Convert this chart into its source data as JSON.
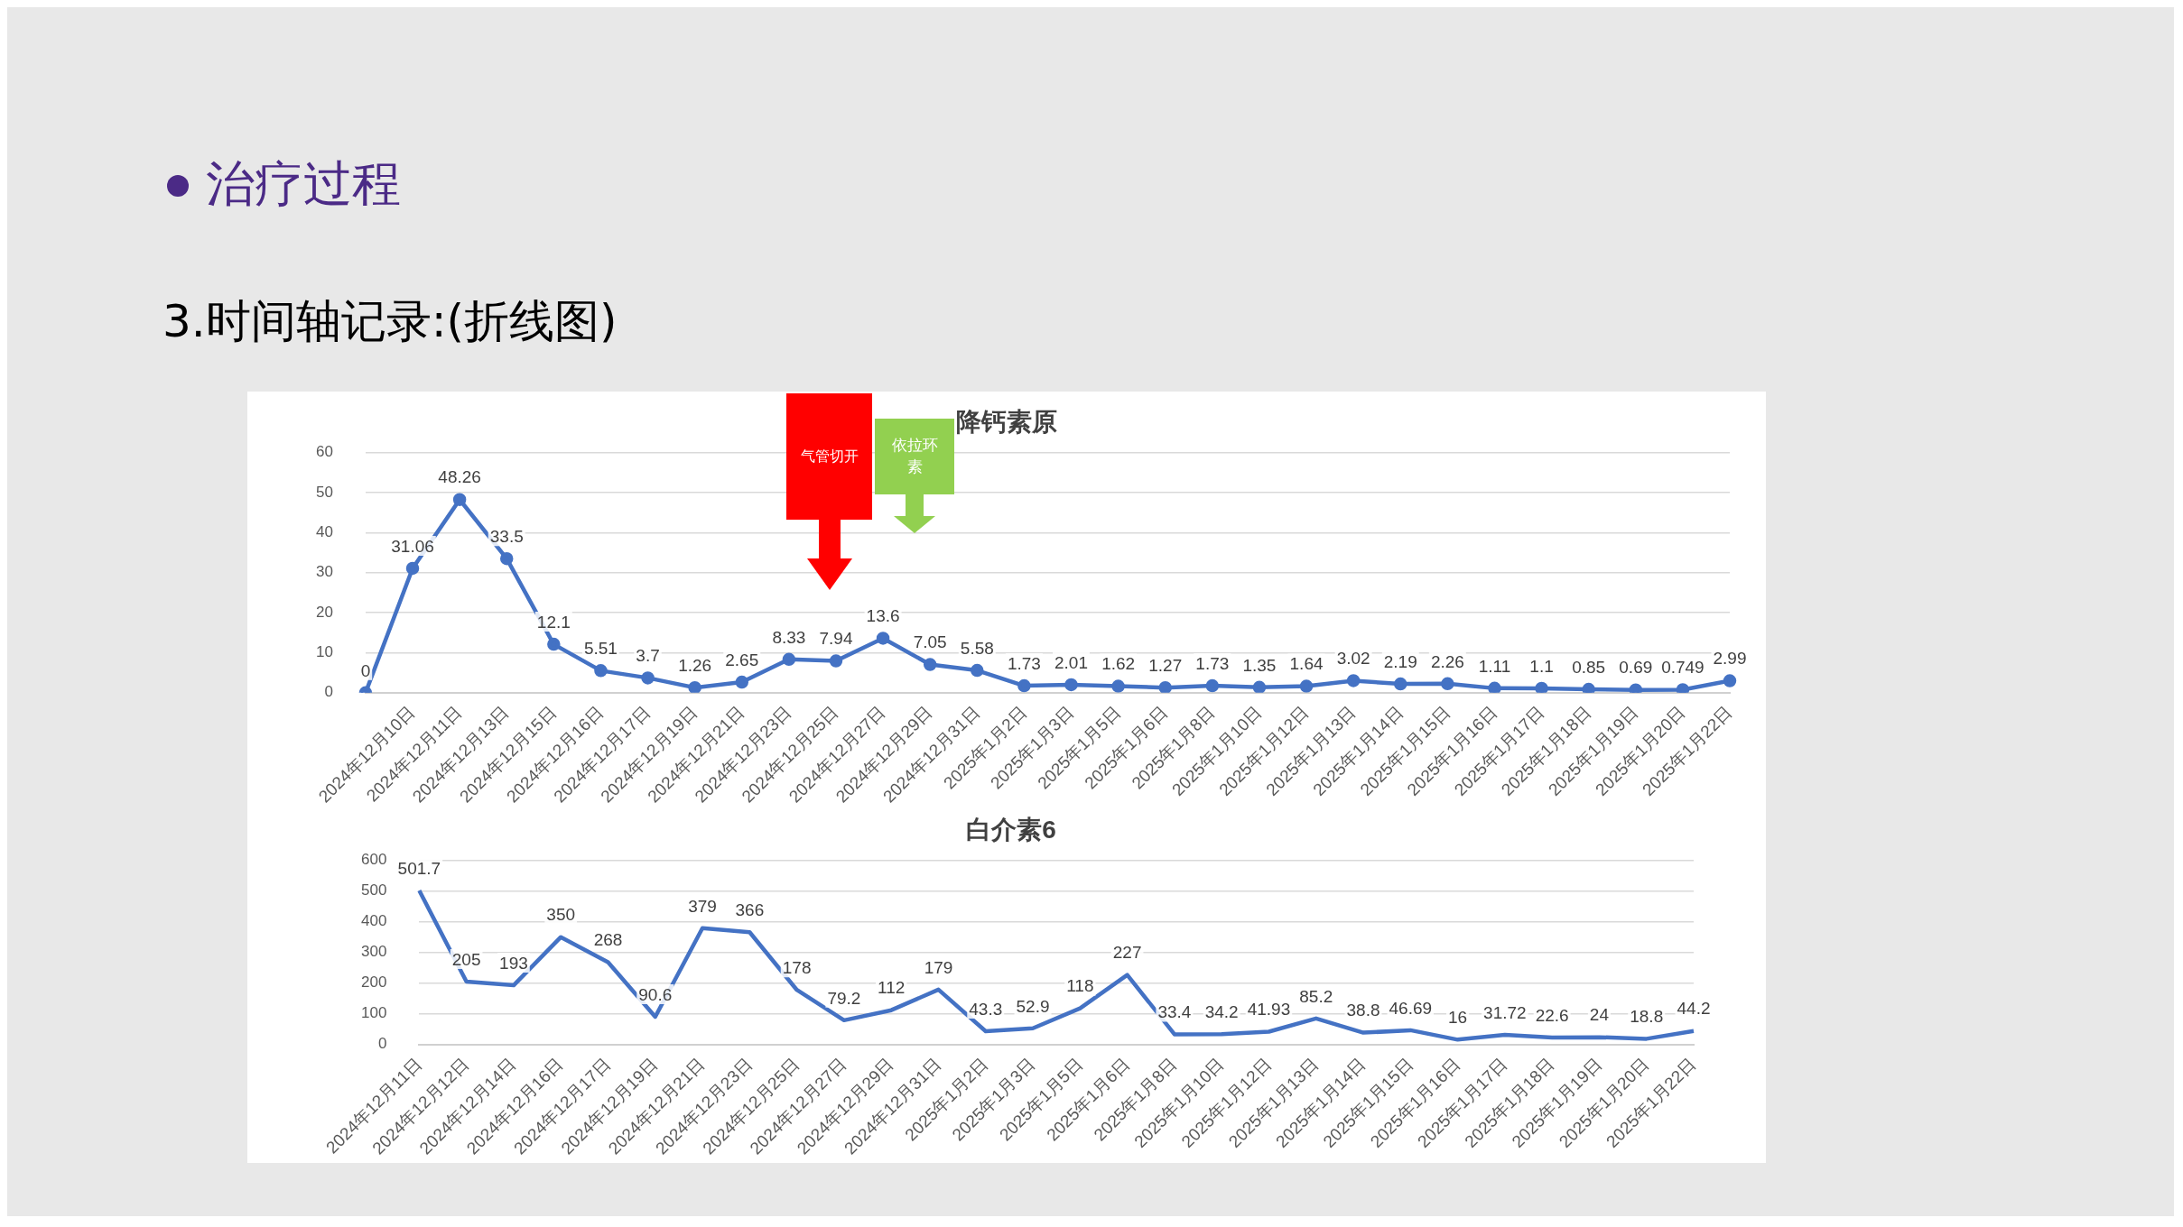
{
  "chart_data": [
    {
      "type": "line",
      "title": "降钙素原",
      "annotations": [
        "治疗过程",
        "3.时间轴记录:(折线图)",
        "气管切开",
        "依拉环素"
      ],
      "categories": [
        null,
        "2024年12月10日",
        "2024年12月11日",
        "2024年12月13日",
        "2024年12月15日",
        "2024年12月16日",
        "2024年12月17日",
        "2024年12月19日",
        "2024年12月21日",
        "2024年12月23日",
        "2024年12月25日",
        "2024年12月27日",
        "2024年12月29日",
        "2024年12月31日",
        "2025年1月2日",
        "2025年1月3日",
        "2025年1月5日",
        "2025年1月6日",
        "2025年1月8日",
        "2025年1月10日",
        "2025年1月12日",
        "2025年1月13日",
        "2025年1月14日",
        "2025年1月15日",
        "2025年1月16日",
        "2025年1月17日",
        "2025年1月18日",
        "2025年1月19日",
        "2025年1月20日",
        "2025年1月22日"
      ],
      "series": [
        {
          "color": "#4472c4",
          "values": [
            0,
            31.06,
            48.26,
            33.5,
            12.1,
            5.51,
            3.7,
            1.26,
            2.65,
            8.33,
            7.94,
            13.6,
            7.05,
            5.58,
            1.73,
            2.01,
            1.62,
            1.27,
            1.73,
            1.35,
            1.64,
            3.02,
            2.19,
            2.26,
            1.11,
            1.1,
            0.85,
            0.69,
            0.749,
            2.99
          ]
        }
      ],
      "ylim": [
        0,
        60
      ],
      "yticks": [
        0,
        10,
        20,
        30,
        40,
        50,
        60
      ],
      "grid": "y",
      "marker": "circle",
      "data_labels": true,
      "legend": false
    },
    {
      "type": "line",
      "title": "白介素6",
      "categories": [
        "2024年12月11日",
        "2024年12月12日",
        "2024年12月14日",
        "2024年12月16日",
        "2024年12月17日",
        "2024年12月19日",
        "2024年12月21日",
        "2024年12月23日",
        "2024年12月25日",
        "2024年12月27日",
        "2024年12月29日",
        "2024年12月31日",
        "2025年1月2日",
        "2025年1月3日",
        "2025年1月5日",
        "2025年1月6日",
        "2025年1月8日",
        "2025年1月10日",
        "2025年1月12日",
        "2025年1月13日",
        "2025年1月14日",
        "2025年1月15日",
        "2025年1月16日",
        "2025年1月17日",
        "2025年1月18日",
        "2025年1月19日",
        "2025年1月20日",
        "2025年1月22日"
      ],
      "series": [
        {
          "color": "#4472c4",
          "values": [
            501.7,
            205,
            193,
            350,
            268,
            90.6,
            379,
            366,
            178,
            79.2,
            112,
            179,
            43.3,
            52.9,
            118,
            227,
            33.4,
            34.2,
            41.93,
            85.2,
            38.8,
            46.69,
            16,
            31.72,
            22.6,
            24,
            18.8,
            44.2
          ]
        }
      ],
      "ylim": [
        0,
        600
      ],
      "yticks": [
        0,
        100,
        200,
        300,
        400,
        500,
        600
      ],
      "grid": "y",
      "marker": "none",
      "data_labels": true,
      "legend": false
    }
  ]
}
